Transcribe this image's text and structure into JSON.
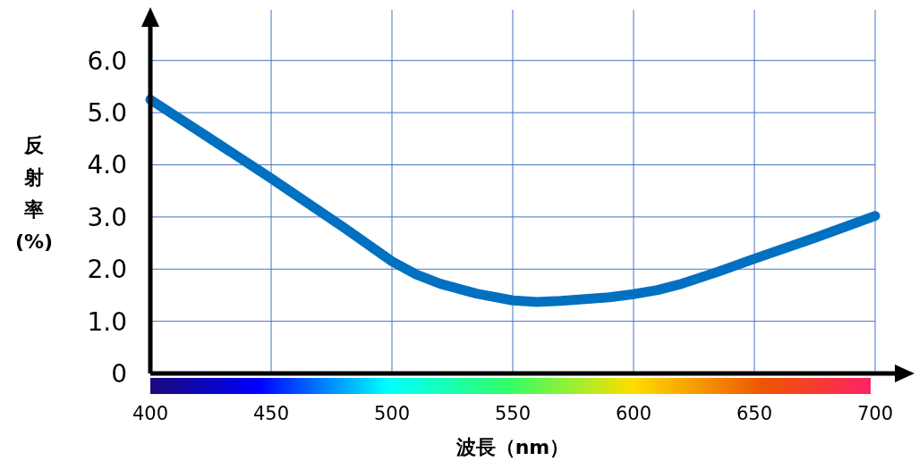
{
  "chart_data": {
    "type": "line",
    "xlabel": "波長（nm）",
    "ylabel": "反射率(%)",
    "x": [
      400,
      420,
      450,
      480,
      500,
      510,
      520,
      535,
      550,
      560,
      570,
      590,
      600,
      610,
      620,
      635,
      650,
      675,
      700
    ],
    "series": [
      {
        "color": "#0070c0",
        "values": [
          5.25,
          4.65,
          3.74,
          2.8,
          2.15,
          1.9,
          1.72,
          1.53,
          1.4,
          1.37,
          1.39,
          1.46,
          1.52,
          1.6,
          1.72,
          1.95,
          2.2,
          2.6,
          3.02
        ]
      }
    ],
    "xlim": [
      400,
      700
    ],
    "ylim": [
      0,
      6.8
    ],
    "xticks": [
      400,
      450,
      500,
      550,
      600,
      650,
      700
    ],
    "yticks": [
      {
        "value": 0,
        "label": "0"
      },
      {
        "value": 1,
        "label": "1.0"
      },
      {
        "value": 2,
        "label": "2.0"
      },
      {
        "value": 3,
        "label": "3.0"
      },
      {
        "value": 4,
        "label": "4.0"
      },
      {
        "value": 5,
        "label": "5.0"
      },
      {
        "value": 6,
        "label": "6.0"
      }
    ],
    "grid": true,
    "marker": "none",
    "line_style": "solid"
  }
}
